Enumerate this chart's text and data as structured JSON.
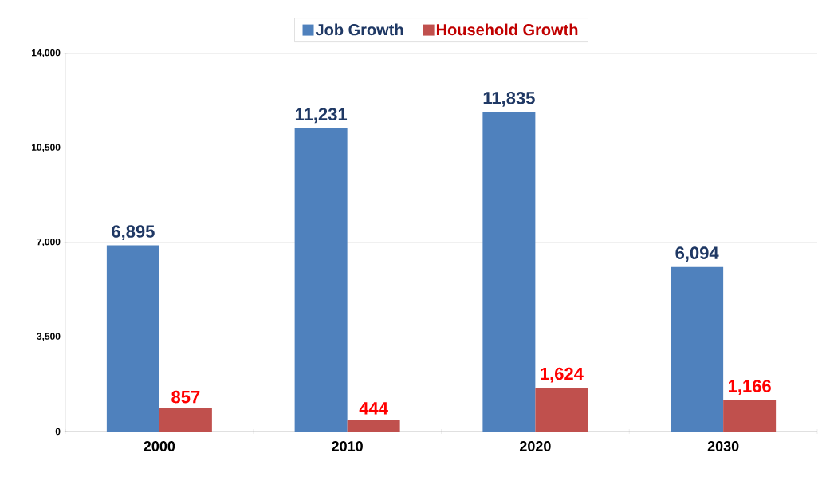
{
  "chart_data": {
    "type": "bar",
    "categories": [
      "2000",
      "2010",
      "2020",
      "2030"
    ],
    "series": [
      {
        "name": "Job Growth",
        "color": "#4f81bd",
        "values": [
          6895,
          11231,
          11835,
          6094
        ],
        "value_labels": [
          "6,895",
          "11,231",
          "11,835",
          "6,094"
        ]
      },
      {
        "name": "Household Growth",
        "color": "#c0504d",
        "values": [
          857,
          444,
          1624,
          1166
        ],
        "value_labels": [
          "857",
          "444",
          "1,624",
          "1,166"
        ]
      }
    ],
    "ylim": [
      0,
      14000
    ],
    "yticks": [
      0,
      {
        "value": 3500,
        "label": "3,500"
      },
      {
        "value": 7000,
        "label": "7,000"
      },
      {
        "value": 10500,
        "label": "10,500"
      },
      {
        "value": 14000,
        "label": "14,000"
      }
    ],
    "grid": "y",
    "legend": "top"
  }
}
